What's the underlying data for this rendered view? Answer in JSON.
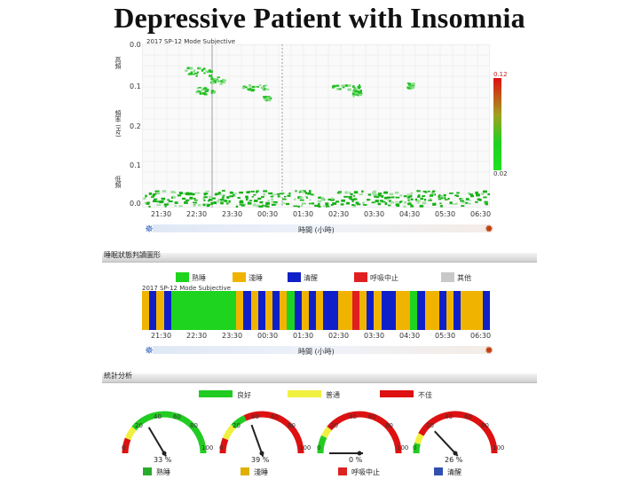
{
  "title": "Depressive Patient with Insomnia",
  "hypnogram": {
    "header_note": "2017 SP-12 Mode Subjective",
    "ylabels": {
      "top": "高頻",
      "mid": "頻率 (Hz)",
      "bottom": "低頻"
    },
    "yticks": [
      "0.0",
      "0.1",
      "0.2",
      "0.1",
      "0.0"
    ],
    "color_scale": {
      "top": "0.12",
      "bottom": "0.02"
    },
    "xticks": [
      "21:30",
      "22:30",
      "23:30",
      "00:30",
      "01:30",
      "02:30",
      "03:30",
      "04:30",
      "05:30",
      "06:30"
    ],
    "xlabel": "時間 (小時)",
    "start_icon": "moon-icon",
    "end_icon": "sun-icon"
  },
  "state_section": {
    "title": "睡眠狀態判讀圖形",
    "legend": [
      {
        "label": "熟睡",
        "color": "#1ed41e"
      },
      {
        "label": "淺睡",
        "color": "#f0b400"
      },
      {
        "label": "清醒",
        "color": "#1020c8"
      },
      {
        "label": "呼吸中止",
        "color": "#e02020"
      },
      {
        "label": "其他",
        "color": "#c8c8c8"
      }
    ],
    "header_note": "2017 SP-12 Mode Subjective",
    "xticks": [
      "21:30",
      "22:30",
      "23:30",
      "00:30",
      "01:30",
      "02:30",
      "03:30",
      "04:30",
      "05:30",
      "06:30"
    ],
    "xlabel": "時間 (小時)",
    "state_sequence": [
      "L",
      "A",
      "L",
      "A",
      "D",
      "D",
      "D",
      "D",
      "D",
      "D",
      "D",
      "D",
      "D",
      "L",
      "A",
      "L",
      "A",
      "L",
      "A",
      "L",
      "D",
      "A",
      "L",
      "A",
      "L",
      "A",
      "A",
      "L",
      "L",
      "R",
      "L",
      "A",
      "L",
      "A",
      "A",
      "L",
      "L",
      "D",
      "A",
      "L",
      "L",
      "A",
      "L",
      "A",
      "L",
      "L",
      "L",
      "A"
    ]
  },
  "stats": {
    "title": "統計分析",
    "legend": [
      {
        "label": "良好",
        "color": "#22cc22"
      },
      {
        "label": "普通",
        "color": "#f0f040"
      },
      {
        "label": "不佳",
        "color": "#dd1111"
      }
    ],
    "gauges": [
      {
        "name": "deep",
        "value": 33,
        "display": "33 %",
        "label": "熟睡",
        "icon": "deep-sleep-icon",
        "icon_color": "#2aaa2a"
      },
      {
        "name": "light",
        "value": 39,
        "display": "39 %",
        "label": "淺睡",
        "icon": "light-sleep-icon",
        "icon_color": "#e0b000"
      },
      {
        "name": "apnea",
        "value": 0,
        "display": "0 %",
        "label": "呼吸中止",
        "icon": "apnea-icon",
        "icon_color": "#dd2222"
      },
      {
        "name": "wake",
        "value": 26,
        "display": "26 %",
        "label": "清醒",
        "icon": "wake-icon",
        "icon_color": "#3050b0"
      }
    ],
    "scale": {
      "min": "0",
      "q1": "20",
      "q2": "40",
      "q3": "60",
      "q4": "80",
      "max": "100"
    }
  }
}
